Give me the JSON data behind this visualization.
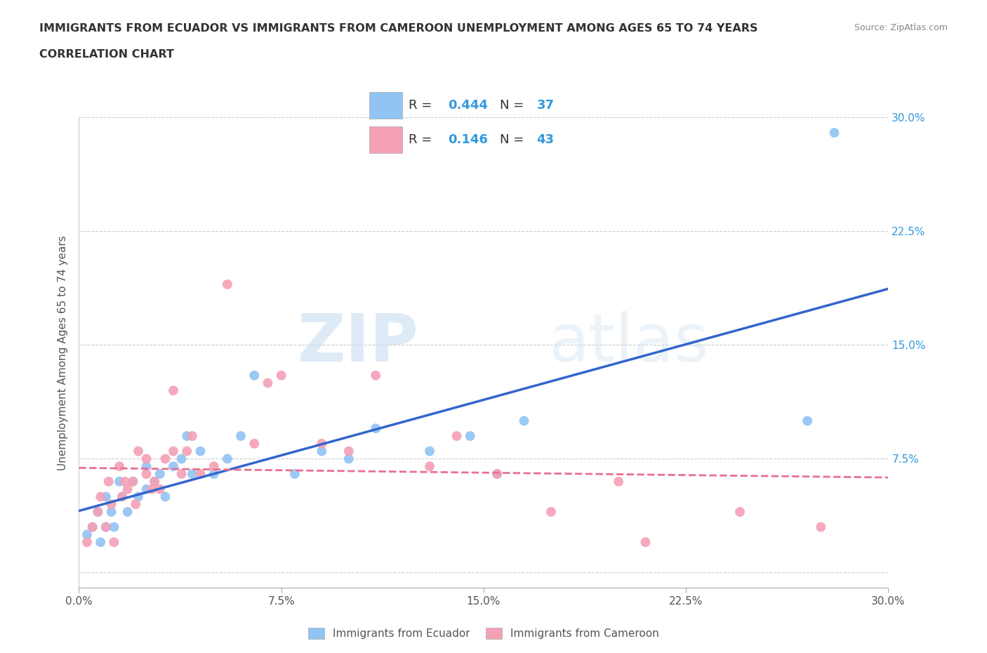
{
  "title_line1": "IMMIGRANTS FROM ECUADOR VS IMMIGRANTS FROM CAMEROON UNEMPLOYMENT AMONG AGES 65 TO 74 YEARS",
  "title_line2": "CORRELATION CHART",
  "source_text": "Source: ZipAtlas.com",
  "ylabel": "Unemployment Among Ages 65 to 74 years",
  "xlim": [
    0.0,
    0.3
  ],
  "ylim": [
    -0.01,
    0.3
  ],
  "xticks": [
    0.0,
    0.075,
    0.15,
    0.225,
    0.3
  ],
  "yticks": [
    0.075,
    0.15,
    0.225,
    0.3
  ],
  "right_ytick_labels": [
    "7.5%",
    "15.0%",
    "22.5%",
    "30.0%"
  ],
  "xtick_labels": [
    "0.0%",
    "7.5%",
    "15.0%",
    "22.5%",
    "30.0%"
  ],
  "ecuador_color": "#91c4f2",
  "cameroon_color": "#f4a0b5",
  "ecuador_line_color": "#3366cc",
  "cameroon_line_color": "#e87090",
  "ecuador_R": 0.444,
  "ecuador_N": 37,
  "cameroon_R": 0.146,
  "cameroon_N": 43,
  "ecuador_x": [
    0.003,
    0.005,
    0.007,
    0.008,
    0.01,
    0.01,
    0.012,
    0.013,
    0.015,
    0.016,
    0.018,
    0.02,
    0.022,
    0.025,
    0.025,
    0.028,
    0.03,
    0.032,
    0.035,
    0.038,
    0.04,
    0.042,
    0.045,
    0.05,
    0.055,
    0.06,
    0.065,
    0.08,
    0.09,
    0.1,
    0.11,
    0.13,
    0.145,
    0.155,
    0.165,
    0.27,
    0.28
  ],
  "ecuador_y": [
    0.025,
    0.03,
    0.04,
    0.02,
    0.03,
    0.05,
    0.04,
    0.03,
    0.06,
    0.05,
    0.04,
    0.06,
    0.05,
    0.07,
    0.055,
    0.06,
    0.065,
    0.05,
    0.07,
    0.075,
    0.09,
    0.065,
    0.08,
    0.065,
    0.075,
    0.09,
    0.13,
    0.065,
    0.08,
    0.075,
    0.095,
    0.08,
    0.09,
    0.065,
    0.1,
    0.1,
    0.29
  ],
  "cameroon_x": [
    0.003,
    0.005,
    0.007,
    0.008,
    0.01,
    0.011,
    0.012,
    0.013,
    0.015,
    0.016,
    0.017,
    0.018,
    0.02,
    0.021,
    0.022,
    0.025,
    0.025,
    0.027,
    0.028,
    0.03,
    0.032,
    0.035,
    0.035,
    0.038,
    0.04,
    0.042,
    0.045,
    0.05,
    0.055,
    0.065,
    0.07,
    0.075,
    0.09,
    0.1,
    0.11,
    0.13,
    0.14,
    0.155,
    0.175,
    0.2,
    0.21,
    0.245,
    0.275
  ],
  "cameroon_y": [
    0.02,
    0.03,
    0.04,
    0.05,
    0.03,
    0.06,
    0.045,
    0.02,
    0.07,
    0.05,
    0.06,
    0.055,
    0.06,
    0.045,
    0.08,
    0.065,
    0.075,
    0.055,
    0.06,
    0.055,
    0.075,
    0.08,
    0.12,
    0.065,
    0.08,
    0.09,
    0.065,
    0.07,
    0.19,
    0.085,
    0.125,
    0.13,
    0.085,
    0.08,
    0.13,
    0.07,
    0.09,
    0.065,
    0.04,
    0.06,
    0.02,
    0.04,
    0.03
  ],
  "watermark_zip": "ZIP",
  "watermark_atlas": "atlas",
  "background_color": "#ffffff",
  "grid_color": "#cccccc"
}
